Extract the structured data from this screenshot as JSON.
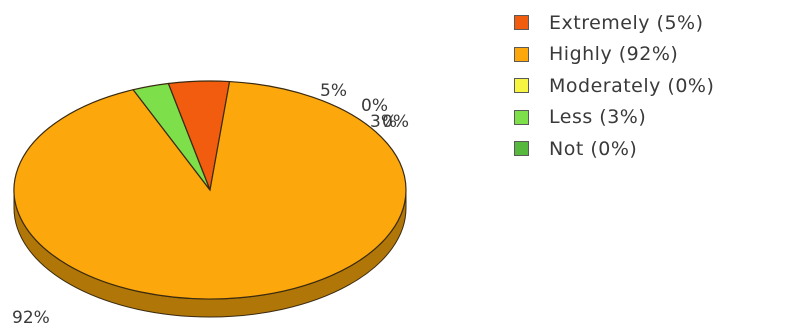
{
  "chart_data": {
    "type": "pie",
    "title": "",
    "categories": [
      "Extremely",
      "Highly",
      "Moderately",
      "Less",
      "Not"
    ],
    "values": [
      5,
      92,
      0,
      3,
      0
    ],
    "colors": [
      "#f25c0e",
      "#fca80c",
      "#f5f542",
      "#7de04a",
      "#56b83c"
    ],
    "slice_labels": [
      "5%",
      "92%",
      "0%",
      "3%",
      "0%"
    ],
    "legend_labels": [
      "Extremely (5%)",
      "Highly (92%)",
      "Moderately (0%)",
      "Less (3%)",
      "Not (0%)"
    ],
    "legend_position": "right",
    "style": "3d"
  }
}
